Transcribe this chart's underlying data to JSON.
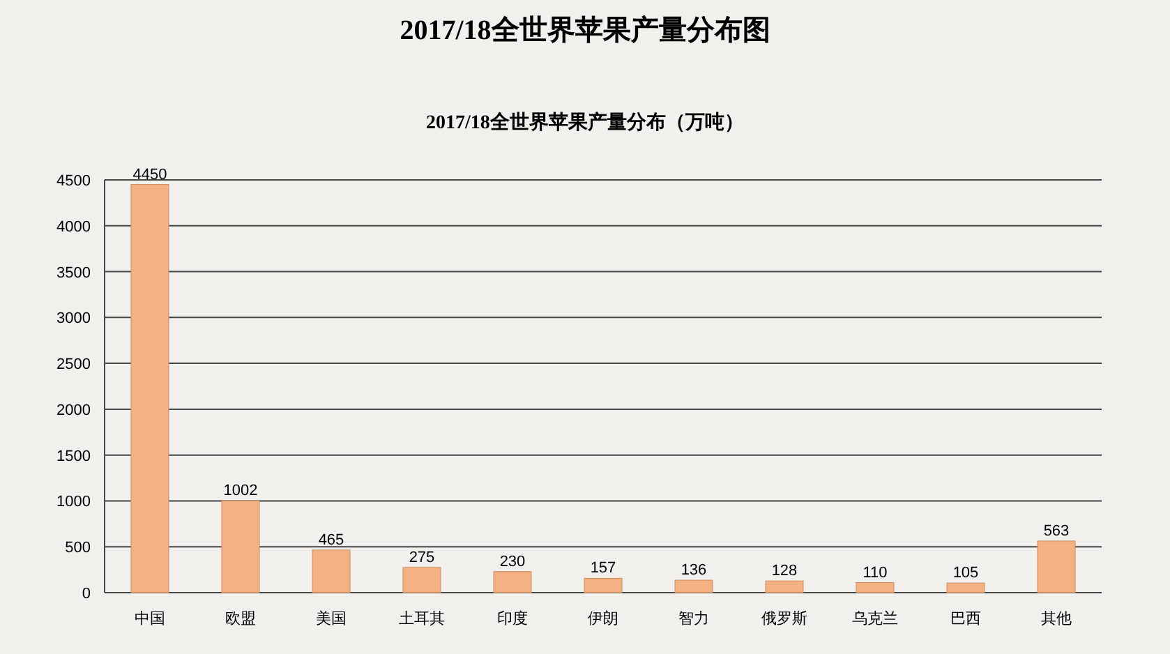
{
  "chart_data": {
    "type": "bar",
    "title": "2017/18全世界苹果产量分布图",
    "subtitle": "2017/18全世界苹果产量分布（万吨）",
    "categories": [
      "中国",
      "欧盟",
      "美国",
      "土耳其",
      "印度",
      "伊朗",
      "智力",
      "俄罗斯",
      "乌克兰",
      "巴西",
      "其他"
    ],
    "values": [
      4450,
      1002,
      465,
      275,
      230,
      157,
      136,
      128,
      110,
      105,
      563
    ],
    "color": "#f4b183",
    "ylim": [
      0,
      4500
    ],
    "yticks": [
      0,
      500,
      1000,
      1500,
      2000,
      2500,
      3000,
      3500,
      4000,
      4500
    ],
    "grid": "y",
    "data_labels": true
  }
}
